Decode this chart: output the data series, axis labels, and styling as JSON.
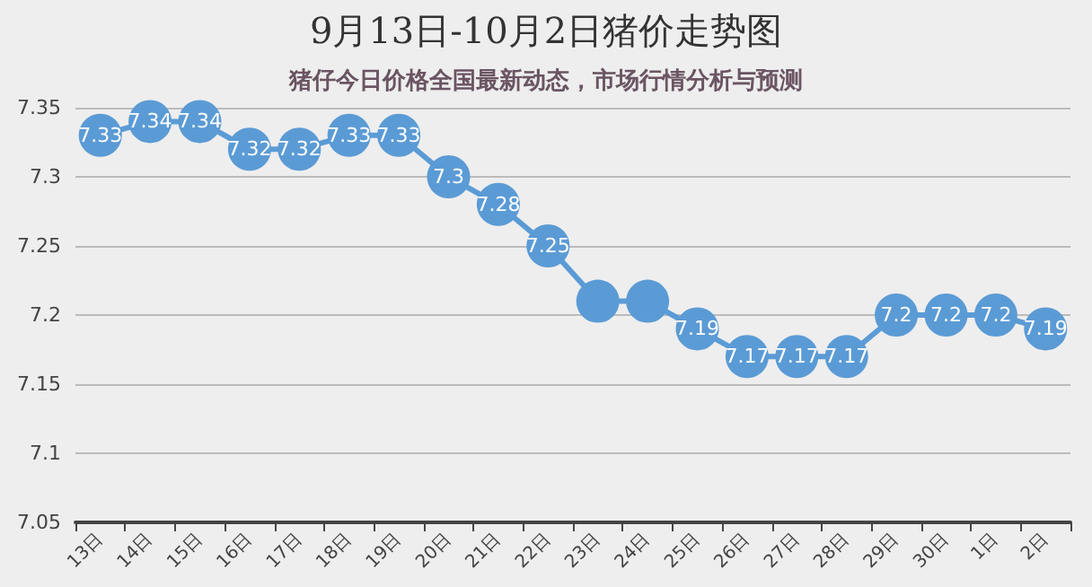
{
  "chart_data": {
    "type": "line",
    "title": "9月13日-10月2日猪价走势图",
    "annotations": [
      "猪仔今日价格全国最新动态，市场行情分析与预测"
    ],
    "categories": [
      "13日",
      "14日",
      "15日",
      "16日",
      "17日",
      "18日",
      "19日",
      "20日",
      "21日",
      "22日",
      "23日",
      "24日",
      "25日",
      "26日",
      "27日",
      "28日",
      "29日",
      "30日",
      "1日",
      "2日"
    ],
    "series": [
      {
        "color": "#5b9bd5",
        "values": [
          7.33,
          7.34,
          7.34,
          7.32,
          7.32,
          7.33,
          7.33,
          7.3,
          7.28,
          7.25,
          7.21,
          7.21,
          7.19,
          7.17,
          7.17,
          7.17,
          7.2,
          7.2,
          7.2,
          7.19
        ],
        "value_labels": [
          "7.33",
          "7.34",
          "7.34",
          "7.32",
          "7.32",
          "7.33",
          "7.33",
          "7.3",
          "7.28",
          "7.25",
          null,
          null,
          "7.19",
          "7.17",
          "7.17",
          "7.17",
          "7.2",
          "7.2",
          "7.2",
          "7.19"
        ]
      }
    ],
    "ylim": [
      7.05,
      7.35
    ],
    "yticks": [
      7.05,
      7.1,
      7.15,
      7.2,
      7.25,
      7.3,
      7.35
    ],
    "grid": "y",
    "marker": "circle"
  }
}
